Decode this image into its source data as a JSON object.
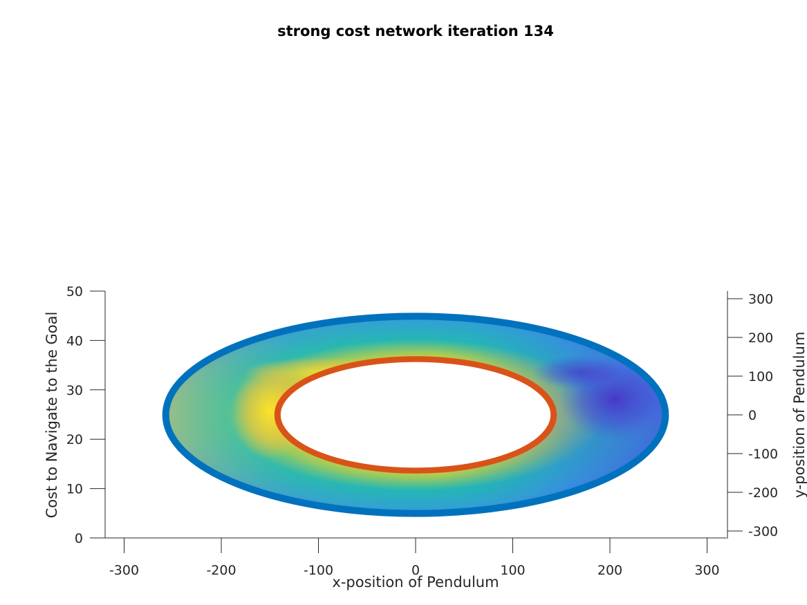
{
  "chart_data": {
    "type": "surface",
    "title": "strong cost network iteration 134",
    "xlabel": "x-position of Pendulum",
    "ylabel": "y-position of Pendulum",
    "zlabel": "Cost to Navigate to the Goal",
    "view": "near-top-down 3D view of an annular (ring) cost surface",
    "xlim": [
      -320,
      320
    ],
    "ylim": [
      -320,
      320
    ],
    "zlim": [
      0,
      50
    ],
    "x_ticks": [
      -300,
      -200,
      -100,
      0,
      100,
      200,
      300
    ],
    "y_ticks": [
      300,
      200,
      100,
      0,
      -100,
      -200,
      -300
    ],
    "z_ticks": [
      0,
      10,
      20,
      30,
      40,
      50
    ],
    "surface": {
      "shape": "annulus",
      "inner_radius": 140,
      "outer_radius": 260,
      "inner_boundary_color": "#d95319",
      "outer_boundary_color": "#0072bd",
      "colormap": "parula",
      "notes": [
        "yellow (high cost) on the left side near the inner radius",
        "dark blue/purple (low cost) on the right side near x=200, y=50"
      ]
    }
  }
}
